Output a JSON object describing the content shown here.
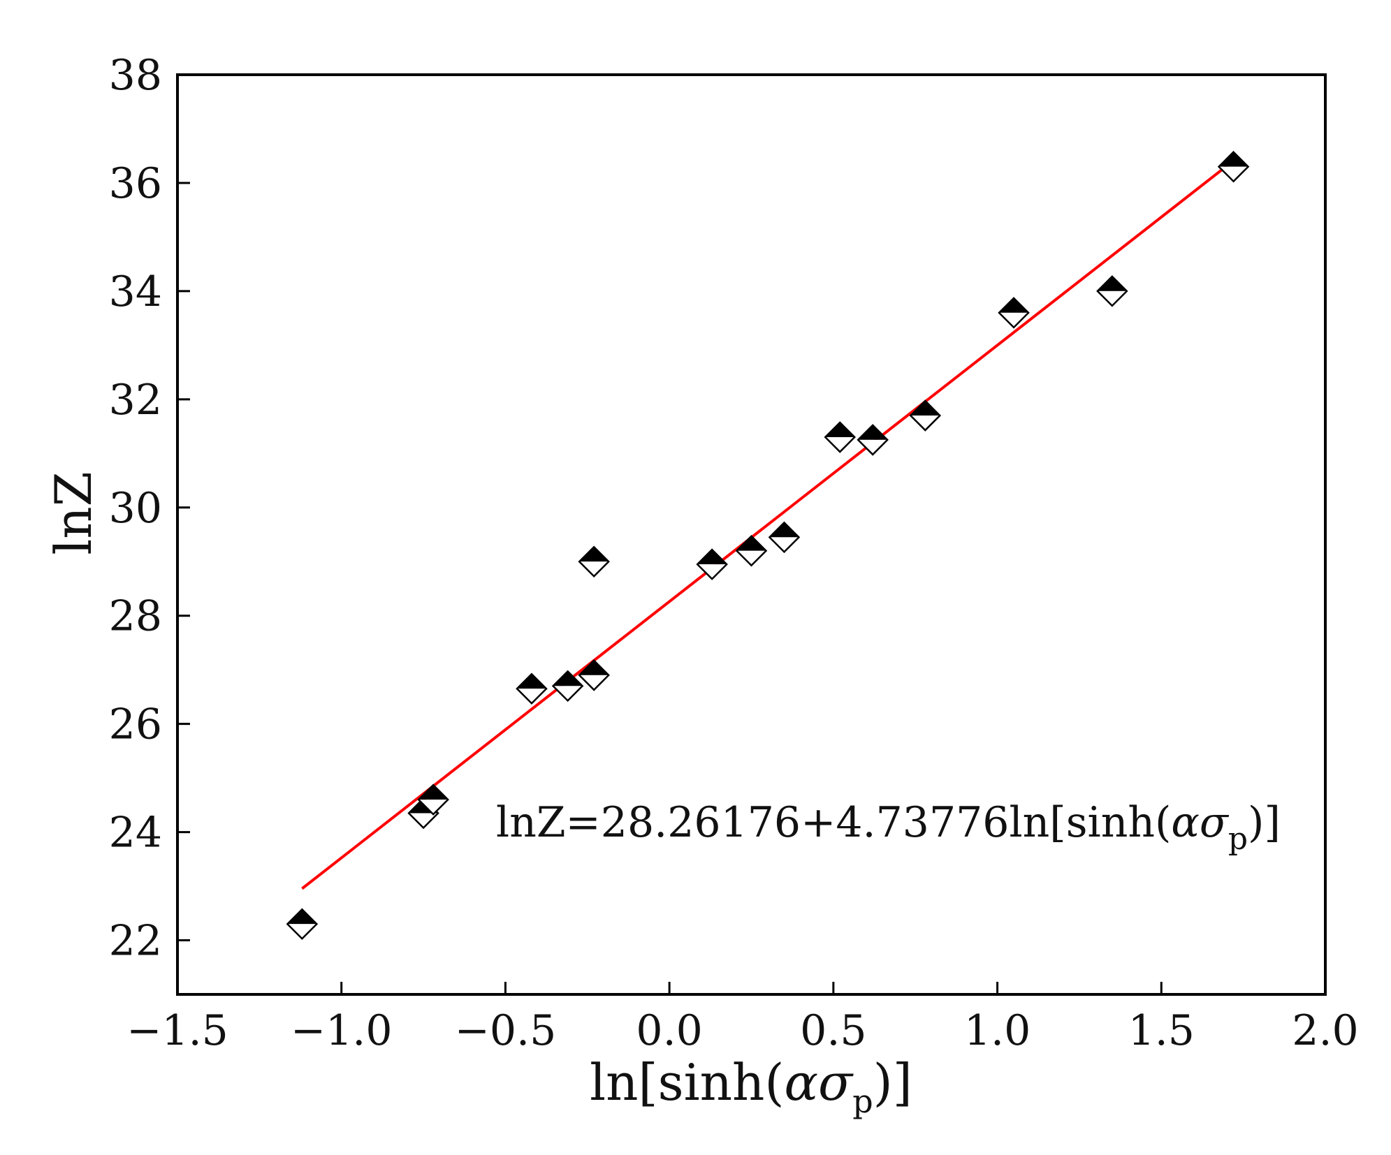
{
  "chart_data": {
    "type": "scatter",
    "xlabel": {
      "pre": "ln[sinh(",
      "greek": "ασ",
      "sub": "p",
      "post": ")]"
    },
    "ylabel": "lnZ",
    "xlim": [
      -1.5,
      2.0
    ],
    "ylim": [
      21,
      38
    ],
    "xticks": [
      {
        "value": -1.5,
        "label": "−1.5"
      },
      {
        "value": -1.0,
        "label": "−1.0"
      },
      {
        "value": -0.5,
        "label": "−0.5"
      },
      {
        "value": 0.0,
        "label": "0.0"
      },
      {
        "value": 0.5,
        "label": "0.5"
      },
      {
        "value": 1.0,
        "label": "1.0"
      },
      {
        "value": 1.5,
        "label": "1.5"
      },
      {
        "value": 2.0,
        "label": "2.0"
      }
    ],
    "yticks": [
      {
        "value": 22,
        "label": "22"
      },
      {
        "value": 24,
        "label": "24"
      },
      {
        "value": 26,
        "label": "26"
      },
      {
        "value": 28,
        "label": "28"
      },
      {
        "value": 30,
        "label": "30"
      },
      {
        "value": 32,
        "label": "32"
      },
      {
        "value": 34,
        "label": "34"
      },
      {
        "value": 36,
        "label": "36"
      },
      {
        "value": 38,
        "label": "38"
      }
    ],
    "grid": false,
    "series": [
      {
        "marker": "half-filled-diamond",
        "x": [
          -1.12,
          -0.75,
          -0.72,
          -0.42,
          -0.31,
          -0.23,
          -0.23,
          0.13,
          0.25,
          0.35,
          0.52,
          0.62,
          0.78,
          1.05,
          1.35,
          1.72
        ],
        "y": [
          22.3,
          24.35,
          24.6,
          26.65,
          26.7,
          26.9,
          29.0,
          28.95,
          29.2,
          29.45,
          31.3,
          31.25,
          31.7,
          33.6,
          34.0,
          36.3
        ]
      }
    ],
    "fit": {
      "intercept": 28.26176,
      "slope": 4.73776,
      "x_range": [
        -1.12,
        1.72
      ],
      "color": "#ff0000",
      "equation": {
        "pre": "lnZ=28.26176+4.73776ln[sinh(",
        "greek": "ασ",
        "sub": "p",
        "post": ")]"
      }
    }
  }
}
